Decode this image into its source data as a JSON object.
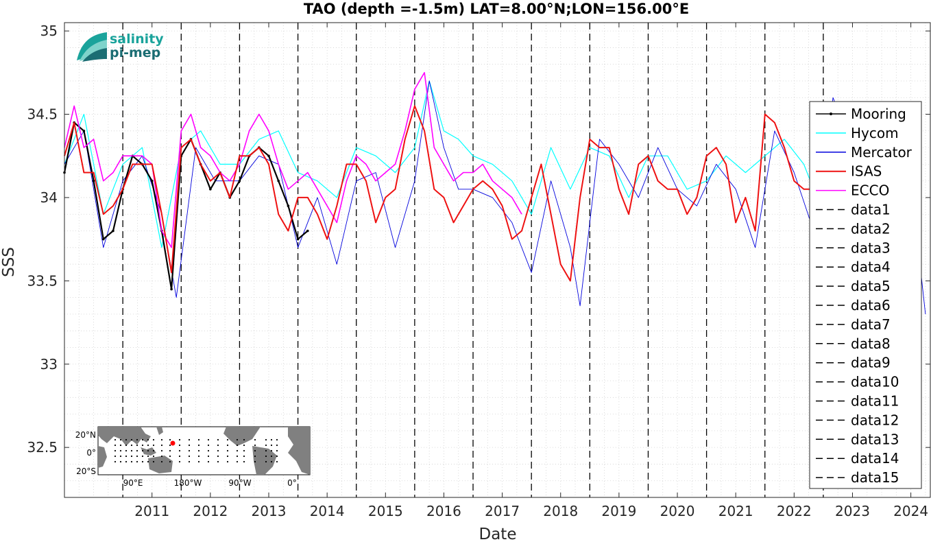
{
  "colors": {
    "Mooring": "#000000",
    "Hycom": "#00ffff",
    "Mercator": "#0000dd",
    "ISAS": "#ee1111",
    "ECCO": "#ff00ff",
    "year_lines": "#000000",
    "logo_primary": "#1aa39b",
    "logo_secondary": "#1b6d73",
    "map_land": "#808080",
    "map_marker": "#ff0000"
  },
  "logo": {
    "line1": "salinity",
    "line2": "pi-mep",
    "icon": "salinity-wave-logo-icon"
  },
  "inset_map": {
    "lat_ticks": [
      "20°N",
      "0°",
      "20°S"
    ],
    "lon_ticks": [
      "90°E",
      "180°W",
      "90°W",
      "0°"
    ]
  },
  "chart_data": {
    "type": "line",
    "title": "TAO (depth =-1.5m) LAT=8.00°N;LON=156.00°E",
    "xlabel": "Date",
    "ylabel": "SSS",
    "xlim": [
      "2010-01-01",
      "2024-11-01"
    ],
    "ylim": [
      32.2,
      35.05
    ],
    "yticks": [
      32.5,
      33,
      33.5,
      34,
      34.5,
      35
    ],
    "ytick_labels": [
      "32.5",
      "33",
      "33.5",
      "34",
      "34.5",
      "35"
    ],
    "xticks": [
      2011,
      2012,
      2013,
      2014,
      2015,
      2016,
      2017,
      2018,
      2019,
      2020,
      2021,
      2022,
      2023,
      2024
    ],
    "xtick_labels": [
      "2011",
      "2012",
      "2013",
      "2014",
      "2015",
      "2016",
      "2017",
      "2018",
      "2019",
      "2020",
      "2021",
      "2022",
      "2023",
      "2024"
    ],
    "vertical_dashed_lines": [
      "2011-01-01",
      "2012-01-01",
      "2013-01-01",
      "2014-01-01",
      "2015-01-01",
      "2016-01-01",
      "2017-01-01",
      "2018-01-01",
      "2019-01-01",
      "2020-01-01",
      "2021-01-01",
      "2022-01-01",
      "2023-01-01"
    ],
    "grid": "dotted",
    "legend_position": "right",
    "series": [
      {
        "name": "Mooring",
        "style": "black line with point markers",
        "x": [
          "2010-01",
          "2010-03",
          "2010-05",
          "2010-07",
          "2010-09",
          "2010-11",
          "2011-01",
          "2011-03",
          "2011-05",
          "2011-07",
          "2011-09",
          "2011-11",
          "2012-01",
          "2012-03",
          "2012-05",
          "2012-07",
          "2012-09",
          "2012-11",
          "2013-01",
          "2013-03",
          "2013-05",
          "2013-07",
          "2013-09",
          "2013-11",
          "2014-01",
          "2014-03"
        ],
        "y": [
          34.15,
          34.45,
          34.4,
          34.1,
          33.75,
          33.8,
          34.05,
          34.25,
          34.2,
          34.1,
          33.8,
          33.45,
          34.25,
          34.35,
          34.2,
          34.05,
          34.15,
          34.0,
          34.1,
          34.25,
          34.3,
          34.25,
          34.1,
          33.95,
          33.75,
          33.8
        ]
      },
      {
        "name": "Hycom",
        "style": "cyan line",
        "x": [
          "2010-01",
          "2010-05",
          "2010-09",
          "2011-01",
          "2011-05",
          "2011-09",
          "2012-01",
          "2012-05",
          "2012-09",
          "2013-01",
          "2013-05",
          "2013-09",
          "2014-01",
          "2014-05",
          "2014-09",
          "2015-01",
          "2015-05",
          "2015-09",
          "2016-01",
          "2016-04",
          "2016-07",
          "2016-10",
          "2017-01",
          "2017-05",
          "2017-09",
          "2018-01",
          "2018-05",
          "2018-09",
          "2019-01",
          "2019-05",
          "2019-09",
          "2020-01",
          "2020-05",
          "2020-09",
          "2021-01",
          "2021-05",
          "2021-09",
          "2022-01",
          "2022-05",
          "2022-09",
          "2022-11"
        ],
        "y": [
          34.2,
          34.5,
          33.9,
          34.2,
          34.3,
          33.7,
          34.3,
          34.4,
          34.2,
          34.2,
          34.35,
          34.4,
          34.15,
          34.1,
          34.0,
          34.3,
          34.25,
          34.15,
          34.3,
          34.7,
          34.4,
          34.35,
          34.25,
          34.2,
          34.1,
          33.9,
          34.3,
          34.05,
          34.3,
          34.25,
          34.0,
          34.25,
          34.25,
          34.05,
          34.1,
          34.25,
          34.15,
          34.25,
          34.35,
          34.2,
          34.05
        ]
      },
      {
        "name": "Mercator",
        "style": "thin blue line",
        "x": [
          "2010-01",
          "2010-05",
          "2010-09",
          "2011-01",
          "2011-05",
          "2011-09",
          "2011-12",
          "2012-04",
          "2012-08",
          "2013-01",
          "2013-05",
          "2013-09",
          "2014-01",
          "2014-05",
          "2014-09",
          "2015-01",
          "2015-05",
          "2015-09",
          "2016-01",
          "2016-04",
          "2016-07",
          "2016-10",
          "2017-01",
          "2017-05",
          "2017-09",
          "2018-01",
          "2018-05",
          "2018-09",
          "2018-11",
          "2019-03",
          "2019-07",
          "2019-11",
          "2020-03",
          "2020-07",
          "2020-11",
          "2021-03",
          "2021-07",
          "2021-11",
          "2022-03",
          "2022-07",
          "2022-11",
          "2023-03",
          "2023-07",
          "2023-11",
          "2024-03",
          "2024-07",
          "2024-10"
        ],
        "y": [
          34.2,
          34.4,
          33.7,
          34.1,
          34.25,
          33.9,
          33.4,
          34.3,
          34.1,
          34.1,
          34.25,
          34.2,
          33.7,
          34.0,
          33.6,
          34.1,
          34.15,
          33.7,
          34.1,
          34.7,
          34.3,
          34.05,
          34.05,
          34.0,
          33.85,
          33.55,
          34.1,
          33.7,
          33.35,
          34.35,
          34.2,
          34.0,
          34.3,
          34.05,
          33.95,
          34.2,
          34.05,
          33.7,
          34.4,
          34.15,
          33.8,
          34.6,
          34.3,
          34.2,
          34.35,
          34.1,
          33.3
        ]
      },
      {
        "name": "ISAS",
        "style": "red line",
        "x": [
          "2010-01",
          "2010-03",
          "2010-05",
          "2010-07",
          "2010-09",
          "2010-11",
          "2011-01",
          "2011-03",
          "2011-05",
          "2011-07",
          "2011-09",
          "2011-11",
          "2012-01",
          "2012-03",
          "2012-05",
          "2012-07",
          "2012-09",
          "2012-11",
          "2013-01",
          "2013-03",
          "2013-05",
          "2013-07",
          "2013-09",
          "2013-11",
          "2014-01",
          "2014-03",
          "2014-05",
          "2014-07",
          "2014-09",
          "2014-11",
          "2015-01",
          "2015-03",
          "2015-05",
          "2015-07",
          "2015-09",
          "2015-11",
          "2016-01",
          "2016-03",
          "2016-05",
          "2016-07",
          "2016-09",
          "2016-11",
          "2017-01",
          "2017-03",
          "2017-05",
          "2017-07",
          "2017-09",
          "2017-11",
          "2018-01",
          "2018-03",
          "2018-05",
          "2018-07",
          "2018-09",
          "2018-11",
          "2019-01",
          "2019-03",
          "2019-05",
          "2019-07",
          "2019-09",
          "2019-11",
          "2020-01",
          "2020-03",
          "2020-05",
          "2020-07",
          "2020-09",
          "2020-11",
          "2021-01",
          "2021-03",
          "2021-05",
          "2021-07",
          "2021-09",
          "2021-11",
          "2022-01",
          "2022-03",
          "2022-05",
          "2022-07",
          "2022-09",
          "2022-11"
        ],
        "y": [
          34.25,
          34.45,
          34.15,
          34.15,
          33.9,
          33.95,
          34.05,
          34.2,
          34.2,
          34.2,
          33.9,
          33.55,
          34.3,
          34.35,
          34.2,
          34.1,
          34.15,
          34.0,
          34.25,
          34.25,
          34.3,
          34.2,
          33.9,
          33.8,
          34.0,
          34.0,
          33.9,
          33.75,
          33.95,
          34.2,
          34.2,
          34.1,
          33.85,
          34.0,
          34.05,
          34.35,
          34.55,
          34.4,
          34.05,
          34.0,
          33.85,
          33.95,
          34.05,
          34.1,
          34.05,
          33.95,
          33.75,
          33.8,
          34.0,
          34.2,
          33.9,
          33.6,
          33.5,
          34.0,
          34.35,
          34.3,
          34.3,
          34.05,
          33.9,
          34.2,
          34.25,
          34.1,
          34.05,
          34.05,
          33.9,
          34.0,
          34.25,
          34.3,
          34.2,
          33.85,
          34.0,
          33.8,
          34.5,
          34.45,
          34.3,
          34.1,
          34.05,
          34.05
        ]
      },
      {
        "name": "ECCO",
        "style": "magenta line",
        "x": [
          "2010-01",
          "2010-03",
          "2010-05",
          "2010-07",
          "2010-09",
          "2010-11",
          "2011-01",
          "2011-03",
          "2011-05",
          "2011-07",
          "2011-09",
          "2011-11",
          "2012-01",
          "2012-03",
          "2012-05",
          "2012-07",
          "2012-09",
          "2012-11",
          "2013-01",
          "2013-03",
          "2013-05",
          "2013-07",
          "2013-09",
          "2013-11",
          "2014-01",
          "2014-03",
          "2014-05",
          "2014-07",
          "2014-09",
          "2014-11",
          "2015-01",
          "2015-03",
          "2015-05",
          "2015-07",
          "2015-09",
          "2015-11",
          "2016-01",
          "2016-03",
          "2016-05",
          "2016-07",
          "2016-09",
          "2016-11",
          "2017-01",
          "2017-03",
          "2017-05",
          "2017-07",
          "2017-09",
          "2017-11"
        ],
        "y": [
          34.3,
          34.55,
          34.3,
          34.35,
          34.1,
          34.15,
          34.25,
          34.25,
          34.25,
          34.2,
          33.8,
          33.7,
          34.4,
          34.5,
          34.3,
          34.25,
          34.15,
          34.1,
          34.2,
          34.4,
          34.5,
          34.4,
          34.2,
          34.05,
          34.1,
          34.15,
          34.05,
          33.95,
          33.85,
          34.1,
          34.25,
          34.2,
          34.1,
          34.15,
          34.2,
          34.4,
          34.65,
          34.75,
          34.3,
          34.2,
          34.1,
          34.15,
          34.15,
          34.2,
          34.1,
          34.05,
          34.0,
          33.9
        ]
      },
      {
        "name": "data1"
      },
      {
        "name": "data2"
      },
      {
        "name": "data3"
      },
      {
        "name": "data4"
      },
      {
        "name": "data5"
      },
      {
        "name": "data6"
      },
      {
        "name": "data7"
      },
      {
        "name": "data8"
      },
      {
        "name": "data9"
      },
      {
        "name": "data10"
      },
      {
        "name": "data11"
      },
      {
        "name": "data12"
      },
      {
        "name": "data13"
      },
      {
        "name": "data14"
      },
      {
        "name": "data15"
      }
    ]
  }
}
